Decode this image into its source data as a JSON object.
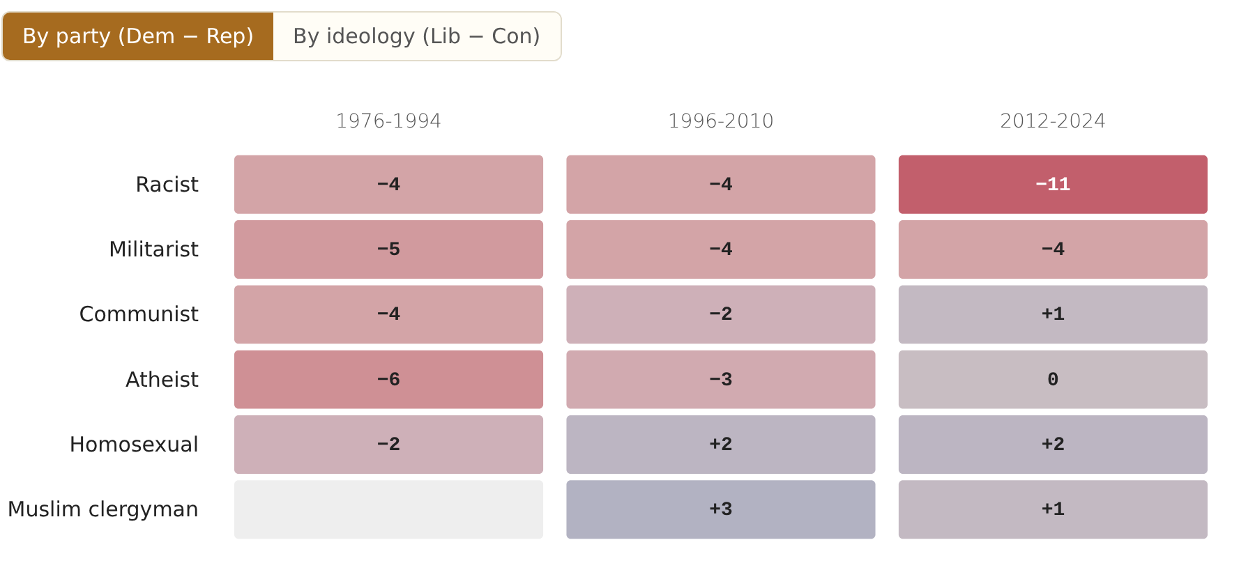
{
  "chart_data": {
    "type": "heatmap",
    "annotations": [
      "By party (Dem − Rep)",
      "By ideology (Lib − Con)"
    ],
    "categories": [
      "1976-1994",
      "1996-2010",
      "2012-2024"
    ],
    "y_categories": [
      "Racist",
      "Militarist",
      "Communist",
      "Atheist",
      "Homosexual",
      "Muslim clergyman"
    ],
    "cells": [
      [
        -4,
        -4,
        -11
      ],
      [
        -5,
        -4,
        -4
      ],
      [
        -4,
        -2,
        1
      ],
      [
        -6,
        -3,
        0
      ],
      [
        -2,
        2,
        2
      ],
      [
        null,
        3,
        1
      ]
    ],
    "cell_labels": [
      [
        "−4",
        "−4",
        "−11"
      ],
      [
        "−5",
        "−4",
        "−4"
      ],
      [
        "−4",
        "−2",
        "+1"
      ],
      [
        "−6",
        "−3",
        "0"
      ],
      [
        "−2",
        "+2",
        "+2"
      ],
      [
        null,
        "+3",
        "+1"
      ]
    ]
  }
}
